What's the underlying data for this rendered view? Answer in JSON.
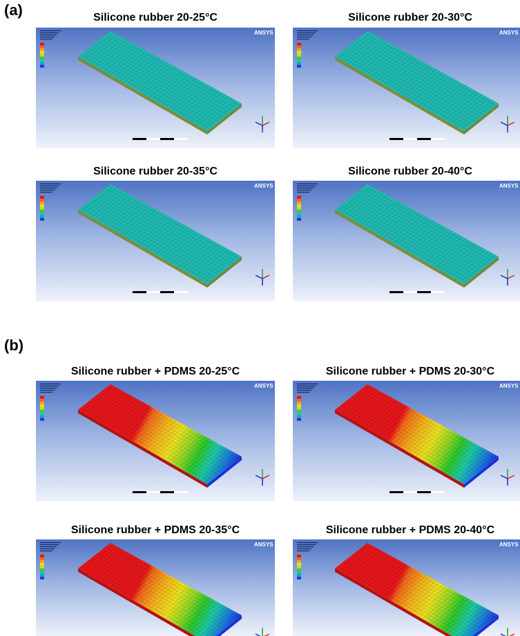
{
  "figure": {
    "software_label": "ANSYS",
    "sections": [
      {
        "label": "(a)",
        "panels": [
          {
            "title": "Silicone rubber 20-25°C"
          },
          {
            "title": "Silicone rubber 20-30°C"
          },
          {
            "title": "Silicone rubber 20-35°C"
          },
          {
            "title": "Silicone rubber 20-40°C"
          }
        ]
      },
      {
        "label": "(b)",
        "panels": [
          {
            "title": "Silicone rubber + PDMS 20-25°C"
          },
          {
            "title": "Silicone rubber + PDMS 20-30°C"
          },
          {
            "title": "Silicone rubber + PDMS 20-35°C"
          },
          {
            "title": "Silicone rubber + PDMS 20-40°C"
          }
        ]
      }
    ]
  }
}
